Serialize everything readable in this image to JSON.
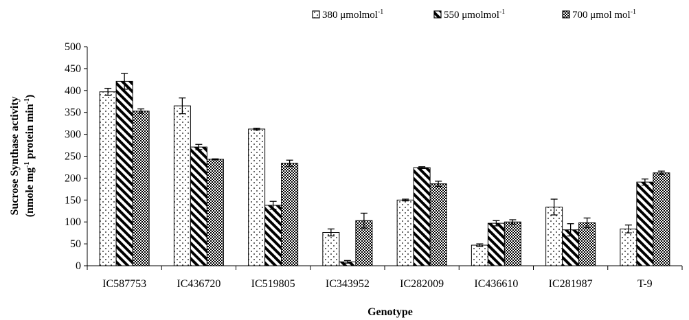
{
  "chart_data": {
    "type": "bar",
    "title": "",
    "xlabel": "Genotype",
    "ylabel_line1": "Sucrose Synthase activity",
    "ylabel_line2_parts": [
      "(nmole mg",
      "-1",
      " protein min",
      "-1",
      ")"
    ],
    "ylim": [
      0,
      500
    ],
    "yticks": [
      0,
      50,
      100,
      150,
      200,
      250,
      300,
      350,
      400,
      450,
      500
    ],
    "grid": false,
    "legend_position": "top-right",
    "categories": [
      "IC587753",
      "IC436720",
      "IC519805",
      "IC343952",
      "IC282009",
      "IC436610",
      "IC281987",
      "T-9"
    ],
    "series": [
      {
        "name": "380 μmolmol-1",
        "legend_base": "380 μmolmol",
        "legend_sup": "-1",
        "pattern": "dots",
        "values": [
          397,
          365,
          312,
          76,
          150,
          47,
          134,
          84
        ],
        "errors": [
          8,
          18,
          2,
          8,
          2,
          3,
          18,
          9
        ]
      },
      {
        "name": "550 μmolmol-1",
        "legend_base": "550 μmolmol",
        "legend_sup": "-1",
        "pattern": "stripes",
        "values": [
          421,
          271,
          138,
          9,
          224,
          97,
          82,
          191
        ],
        "errors": [
          18,
          6,
          9,
          3,
          2,
          6,
          14,
          7
        ]
      },
      {
        "name": "700 μmol mol-1",
        "legend_base": "700 μmol  mol",
        "legend_sup": "-1",
        "pattern": "checker",
        "values": [
          353,
          243,
          234,
          103,
          187,
          100,
          98,
          212
        ],
        "errors": [
          5,
          1,
          7,
          17,
          6,
          5,
          11,
          4
        ]
      }
    ]
  }
}
